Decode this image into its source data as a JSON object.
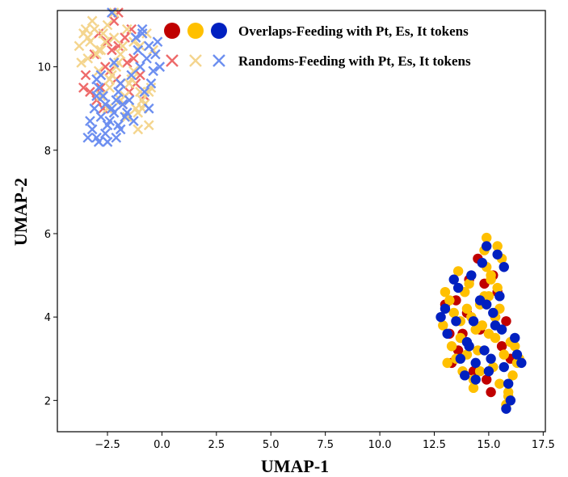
{
  "chart_data": {
    "type": "scatter",
    "title": "",
    "xlabel": "UMAP-1",
    "ylabel": "UMAP-2",
    "xlim": [
      -4.8,
      17.6
    ],
    "ylim": [
      1.25,
      11.35
    ],
    "xticks": [
      -2.5,
      0.0,
      2.5,
      5.0,
      7.5,
      10.0,
      12.5,
      15.0,
      17.5
    ],
    "xtick_labels": [
      "−2.5",
      "0.0",
      "2.5",
      "5.0",
      "7.5",
      "10.0",
      "12.5",
      "15.0",
      "17.5"
    ],
    "yticks": [
      2,
      4,
      6,
      8,
      10
    ],
    "ytick_labels": [
      "2",
      "4",
      "6",
      "8",
      "10"
    ],
    "grid": false,
    "legend": {
      "placement": "top-right",
      "entries": [
        {
          "label": "Overlaps-Feeding with Pt, Es, It tokens",
          "marker": "circle",
          "colors": [
            "#c00000",
            "#ffc000",
            "#0020c0"
          ]
        },
        {
          "label": "Randoms-Feeding with Pt, Es, It tokens",
          "marker": "x",
          "colors": [
            "#ee6a6a",
            "#f4d58e",
            "#6d8ff0"
          ]
        }
      ]
    },
    "series": [
      {
        "name": "Overlaps Pt",
        "marker": "circle",
        "color": "#c00000",
        "x": [
          13.0,
          13.6,
          14.1,
          14.6,
          15.2,
          15.6,
          13.3,
          14.0,
          14.9,
          15.4,
          16.0,
          13.8,
          14.5,
          15.1,
          15.8,
          13.2,
          14.3,
          15.3,
          14.8,
          13.5
        ],
        "y": [
          4.3,
          3.2,
          4.9,
          3.7,
          5.0,
          3.3,
          2.9,
          4.1,
          2.5,
          4.6,
          3.0,
          3.6,
          5.4,
          2.2,
          3.9,
          3.6,
          2.7,
          4.0,
          4.8,
          4.4
        ]
      },
      {
        "name": "Overlaps Es",
        "marker": "circle",
        "color": "#ffc000",
        "x": [
          12.9,
          13.2,
          13.7,
          14.1,
          14.5,
          14.9,
          15.3,
          15.7,
          16.1,
          13.0,
          13.5,
          14.0,
          14.4,
          14.8,
          15.2,
          15.6,
          16.0,
          13.3,
          13.8,
          14.2,
          14.7,
          15.1,
          15.5,
          15.9,
          16.3,
          13.6,
          14.3,
          15.0,
          15.4,
          14.6,
          13.4,
          14.0,
          14.8,
          15.4,
          16.2,
          13.1,
          13.9,
          14.6,
          15.3,
          15.8,
          14.9,
          15.5,
          15.1,
          14.3,
          13.7,
          16.4,
          15.0,
          15.9
        ],
        "y": [
          3.8,
          4.4,
          3.5,
          4.8,
          3.2,
          5.2,
          4.0,
          3.1,
          2.6,
          4.6,
          3.0,
          4.2,
          3.7,
          4.5,
          2.8,
          5.4,
          3.4,
          3.3,
          2.7,
          4.0,
          3.8,
          5.0,
          2.4,
          2.2,
          2.9,
          5.1,
          2.5,
          3.6,
          5.7,
          4.3,
          4.1,
          3.1,
          5.6,
          4.7,
          3.3,
          2.9,
          4.6,
          2.7,
          3.5,
          1.9,
          5.9,
          4.2,
          4.9,
          2.3,
          3.9,
          3.0,
          4.5,
          2.1
        ]
      },
      {
        "name": "Overlaps It",
        "marker": "circle",
        "color": "#0020c0",
        "x": [
          12.8,
          13.1,
          13.6,
          14.0,
          14.4,
          14.9,
          15.3,
          15.7,
          16.2,
          13.4,
          13.9,
          14.3,
          14.7,
          15.1,
          15.5,
          15.9,
          13.0,
          14.1,
          14.6,
          15.0,
          15.6,
          16.3,
          13.5,
          14.2,
          14.8,
          15.4,
          16.0,
          14.4,
          15.8,
          15.2,
          13.7,
          14.9,
          16.5,
          15.7
        ],
        "y": [
          4.0,
          3.6,
          4.7,
          3.4,
          2.9,
          4.3,
          3.8,
          2.8,
          3.5,
          4.9,
          2.6,
          3.9,
          5.3,
          3.0,
          4.5,
          2.4,
          4.2,
          3.3,
          4.4,
          2.7,
          3.7,
          3.1,
          3.9,
          5.0,
          3.2,
          5.5,
          2.0,
          2.5,
          1.8,
          4.1,
          3.0,
          5.7,
          2.9,
          5.2
        ]
      },
      {
        "name": "Randoms Pt",
        "marker": "x",
        "color": "#ee6a6a",
        "x": [
          -3.5,
          -3.1,
          -2.8,
          -2.4,
          -2.0,
          -1.6,
          -1.2,
          -0.8,
          -3.3,
          -2.9,
          -2.5,
          -2.1,
          -1.7,
          -1.3,
          -3.0,
          -2.6,
          -2.2,
          -1.8,
          -1.4,
          -1.0,
          -3.6,
          -2.7,
          -2.3,
          -1.9,
          -1.5,
          -2.0
        ],
        "y": [
          9.8,
          10.3,
          9.5,
          9.9,
          10.5,
          10.1,
          9.6,
          9.3,
          9.4,
          10.8,
          10.6,
          9.7,
          10.7,
          10.2,
          9.2,
          10.0,
          11.1,
          9.1,
          10.9,
          9.8,
          9.5,
          9.0,
          10.4,
          9.6,
          9.4,
          11.3
        ]
      },
      {
        "name": "Randoms Es",
        "marker": "x",
        "color": "#f4d58e",
        "x": [
          -3.8,
          -3.6,
          -3.4,
          -3.1,
          -2.8,
          -2.5,
          -2.2,
          -1.9,
          -1.6,
          -1.3,
          -1.0,
          -0.7,
          -0.4,
          -3.7,
          -3.3,
          -3.0,
          -2.7,
          -2.4,
          -2.1,
          -1.8,
          -1.5,
          -1.2,
          -0.9,
          -0.6,
          -3.5,
          -3.2,
          -2.9,
          -2.6,
          -2.3,
          -2.0,
          -1.7,
          -1.4,
          -1.1,
          -0.8,
          -0.5,
          -2.8,
          -2.2,
          -1.6,
          -1.0,
          -0.6,
          -3.4,
          -2.9,
          -2.4,
          -1.9,
          -1.3,
          -0.9,
          -2.5,
          -1.1
        ],
        "y": [
          10.5,
          10.8,
          10.2,
          10.9,
          10.4,
          11.0,
          10.7,
          10.3,
          10.9,
          10.6,
          10.5,
          10.8,
          10.4,
          10.1,
          10.6,
          10.3,
          10.8,
          9.7,
          10.0,
          10.5,
          9.6,
          9.0,
          9.2,
          9.4,
          10.9,
          11.1,
          10.4,
          10.6,
          9.8,
          10.1,
          9.3,
          9.7,
          8.9,
          9.1,
          9.5,
          9.3,
          11.3,
          8.8,
          9.4,
          8.6,
          10.7,
          9.9,
          9.5,
          9.2,
          9.9,
          9.0,
          9.0,
          8.5
        ]
      },
      {
        "name": "Randoms It",
        "marker": "x",
        "color": "#6d8ff0",
        "x": [
          -3.2,
          -3.0,
          -2.8,
          -2.6,
          -2.4,
          -2.2,
          -2.0,
          -1.8,
          -3.1,
          -2.9,
          -2.7,
          -2.5,
          -2.3,
          -2.1,
          -1.9,
          -1.7,
          -1.5,
          -3.3,
          -2.9,
          -2.6,
          -3.4,
          -3.0,
          -2.5,
          -2.8,
          -1.2,
          -0.9,
          -0.6,
          -0.3,
          -1.0,
          -0.7,
          -0.4,
          -0.1,
          -1.1,
          -0.5,
          -0.8,
          -0.2,
          -2.3,
          -1.9,
          -1.4,
          -2.1,
          -1.6,
          -1.3,
          -0.6,
          -2.0,
          -2.2,
          -3.0,
          -0.9
        ],
        "y": [
          8.5,
          8.3,
          8.8,
          8.4,
          8.7,
          8.9,
          8.6,
          9.1,
          9.0,
          8.2,
          9.3,
          8.6,
          9.0,
          8.3,
          8.5,
          8.8,
          9.2,
          8.7,
          9.5,
          9.1,
          8.3,
          9.3,
          8.2,
          9.8,
          10.7,
          10.9,
          10.5,
          10.3,
          10.0,
          10.2,
          9.9,
          10.0,
          10.4,
          9.6,
          9.4,
          10.6,
          11.3,
          9.6,
          9.8,
          9.2,
          8.9,
          8.7,
          9.0,
          9.4,
          10.1,
          9.7,
          10.8
        ]
      }
    ]
  }
}
